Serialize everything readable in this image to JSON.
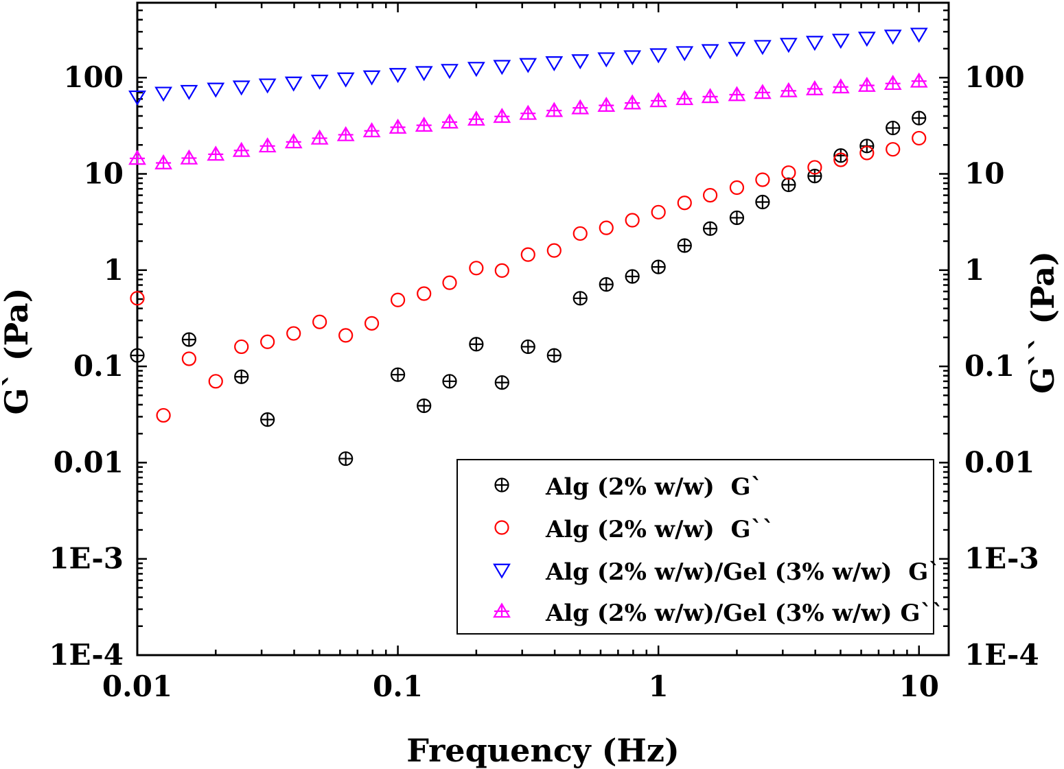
{
  "chart_data": {
    "type": "scatter",
    "xscale": "log",
    "yscale": "log",
    "xlim": [
      0.01,
      13
    ],
    "ylim": [
      0.0001,
      600
    ],
    "xlabel": "Frequency (Hz)",
    "ylabel_left": "G` (Pa)",
    "ylabel_right": "G`` (Pa)",
    "x_ticks": [
      {
        "value": 0.01,
        "label": "0.01"
      },
      {
        "value": 0.1,
        "label": "0.1"
      },
      {
        "value": 1,
        "label": "1"
      },
      {
        "value": 10,
        "label": "10"
      }
    ],
    "y_ticks": [
      {
        "value": 100,
        "label": "100"
      },
      {
        "value": 10,
        "label": "10"
      },
      {
        "value": 1,
        "label": "1"
      },
      {
        "value": 0.1,
        "label": "0.1"
      },
      {
        "value": 0.01,
        "label": "0.01"
      },
      {
        "value": 0.001,
        "label": "1E-3"
      },
      {
        "value": 0.0001,
        "label": "1E-4"
      }
    ],
    "legend_position": "bottom-right",
    "series": [
      {
        "name": "Alg (2% w/w)  G`",
        "marker": "circle-plus",
        "color": "#000000",
        "x": [
          0.01,
          0.0158,
          0.0251,
          0.0316,
          0.0631,
          0.1,
          0.126,
          0.158,
          0.2,
          0.251,
          0.316,
          0.398,
          0.501,
          0.631,
          0.794,
          1.0,
          1.26,
          1.58,
          2.0,
          2.51,
          3.16,
          3.98,
          5.01,
          6.31,
          7.94,
          10.0
        ],
        "values": [
          0.13,
          0.19,
          0.078,
          0.028,
          0.011,
          0.082,
          0.039,
          0.07,
          0.17,
          0.068,
          0.16,
          0.13,
          0.51,
          0.71,
          0.86,
          1.08,
          1.8,
          2.7,
          3.5,
          5.1,
          7.7,
          9.5,
          15.5,
          19.5,
          30,
          38
        ]
      },
      {
        "name": "Alg (2% w/w)  G``",
        "marker": "circle",
        "color": "#ff0000",
        "x": [
          0.01,
          0.0126,
          0.0158,
          0.02,
          0.0251,
          0.0316,
          0.0398,
          0.0501,
          0.0631,
          0.0794,
          0.1,
          0.126,
          0.158,
          0.2,
          0.251,
          0.316,
          0.398,
          0.501,
          0.631,
          0.794,
          1.0,
          1.26,
          1.58,
          2.0,
          2.51,
          3.16,
          3.98,
          5.01,
          6.31,
          7.94,
          10.0
        ],
        "values": [
          0.51,
          0.031,
          0.12,
          0.07,
          0.16,
          0.18,
          0.22,
          0.29,
          0.21,
          0.28,
          0.49,
          0.57,
          0.74,
          1.05,
          0.99,
          1.45,
          1.6,
          2.4,
          2.75,
          3.3,
          4.0,
          5.0,
          6.0,
          7.2,
          8.7,
          10.3,
          11.7,
          14.0,
          16.5,
          18.0,
          23.5
        ]
      },
      {
        "name": "Alg (2% w/w)/Gel (3% w/w)  G`",
        "marker": "triangle-down",
        "color": "#0000ff",
        "x": [
          0.01,
          0.0126,
          0.0158,
          0.02,
          0.0251,
          0.0316,
          0.0398,
          0.0501,
          0.0631,
          0.0794,
          0.1,
          0.126,
          0.158,
          0.2,
          0.251,
          0.316,
          0.398,
          0.501,
          0.631,
          0.794,
          1.0,
          1.26,
          1.58,
          2.0,
          2.51,
          3.16,
          3.98,
          5.01,
          6.31,
          7.94,
          10.0
        ],
        "values": [
          63,
          69,
          72,
          76,
          80,
          84,
          88,
          92,
          97,
          102,
          108,
          113,
          119,
          125,
          131,
          137,
          143,
          150,
          157,
          165,
          173,
          182,
          191,
          201,
          211,
          222,
          233,
          245,
          257,
          270,
          283
        ]
      },
      {
        "name": "Alg (2% w/w)/Gel (3% w/w) G``",
        "marker": "triangle-up-cross",
        "color": "#ff00ff",
        "x": [
          0.01,
          0.0126,
          0.0158,
          0.02,
          0.0251,
          0.0316,
          0.0398,
          0.0501,
          0.0631,
          0.0794,
          0.1,
          0.126,
          0.158,
          0.2,
          0.251,
          0.316,
          0.398,
          0.501,
          0.631,
          0.794,
          1.0,
          1.26,
          1.58,
          2.0,
          2.51,
          3.16,
          3.98,
          5.01,
          6.31,
          7.94,
          10.0
        ],
        "values": [
          14.5,
          13,
          14.6,
          16,
          17.5,
          19.5,
          21.5,
          23.5,
          25.5,
          28,
          30.5,
          32,
          34.5,
          37,
          39.5,
          42.5,
          45.5,
          48.5,
          51.5,
          54.5,
          57.5,
          60.5,
          63.5,
          66.5,
          70,
          73,
          76.5,
          80,
          83,
          87,
          92
        ]
      }
    ]
  }
}
